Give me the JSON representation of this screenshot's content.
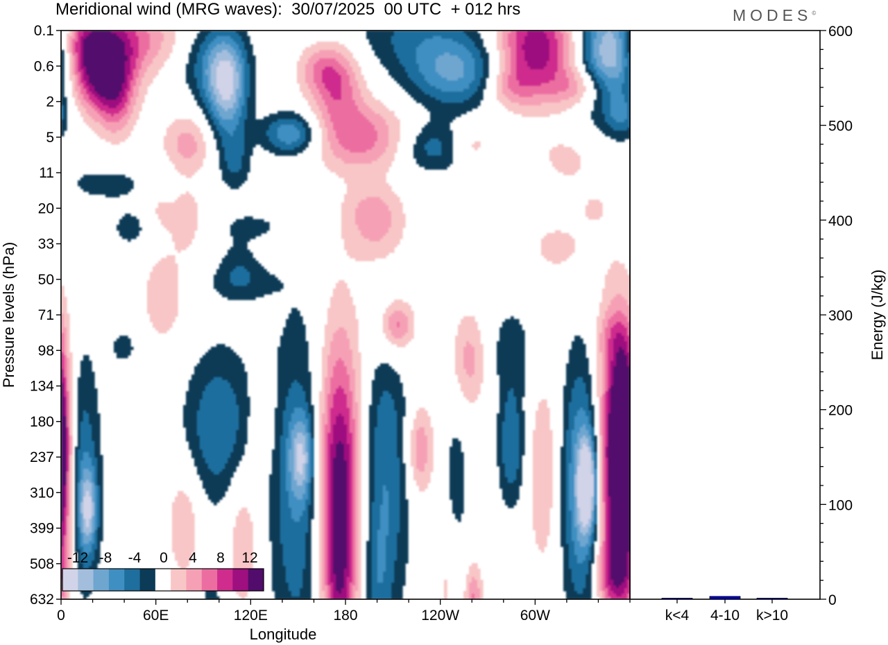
{
  "header": {
    "title": "Meridional wind (MRG waves):  30/07/2025  00 UTC  + 012 hrs",
    "logo": "MODES"
  },
  "colors": {
    "neg": [
      "#0b3b57",
      "#1e6e9e",
      "#3f8fc2",
      "#6ea6d0",
      "#a3bedd",
      "#d1d3e8"
    ],
    "pos": [
      "#f8c6c6",
      "#f6a0b6",
      "#ec6ea1",
      "#cf2c8d",
      "#9e0f7f",
      "#520c6c"
    ],
    "bar": "#0000bb"
  },
  "chart_data": [
    {
      "type": "heatmap",
      "title": "Meridional wind (MRG waves)",
      "xlabel": "Longitude",
      "ylabel": "Pressure levels (hPa)",
      "x_ticks": [
        "0",
        "60E",
        "120E",
        "180",
        "120W",
        "60W"
      ],
      "x_tick_lons": [
        0,
        60,
        120,
        180,
        240,
        300
      ],
      "xlim": [
        0,
        360
      ],
      "y_levels": [
        "0.1",
        "0.6",
        "2",
        "5",
        "11",
        "20",
        "33",
        "50",
        "71",
        "98",
        "134",
        "180",
        "237",
        "310",
        "399",
        "508",
        "632"
      ],
      "colorbar": {
        "labels": [
          "-12",
          "-8",
          "-4",
          "0",
          "4",
          "8",
          "12"
        ],
        "levels": [
          -12,
          -10,
          -8,
          -6,
          -4,
          -2,
          2,
          4,
          6,
          8,
          10,
          12
        ]
      },
      "features": [
        {
          "lon": 25,
          "lev": 1.2,
          "w": 14,
          "h": 0.8,
          "v": 13
        },
        {
          "lon": 40,
          "lev": 0.2,
          "w": 24,
          "h": 0.7,
          "v": 7
        },
        {
          "lon": 12,
          "lev": 0.2,
          "w": 12,
          "h": 0.6,
          "v": 5
        },
        {
          "lon": 35,
          "lev": 2.0,
          "w": 8,
          "h": 0.8,
          "v": 5
        },
        {
          "lon": 80,
          "lev": 3.2,
          "w": 11,
          "h": 0.6,
          "v": 5
        },
        {
          "lon": 62,
          "lev": 5.0,
          "w": 7,
          "h": 0.5,
          "v": 2.5
        },
        {
          "lon": 105,
          "lev": 1.6,
          "w": 9,
          "h": 1.0,
          "v": -11
        },
        {
          "lon": 95,
          "lev": 0.9,
          "w": 14,
          "h": 0.8,
          "v": -5
        },
        {
          "lon": 110,
          "lev": 3.7,
          "w": 7,
          "h": 0.6,
          "v": -4
        },
        {
          "lon": 145,
          "lev": 2.9,
          "w": 12,
          "h": 0.4,
          "v": -8
        },
        {
          "lon": 175,
          "lev": 1.5,
          "w": 11,
          "h": 0.8,
          "v": 7
        },
        {
          "lon": 162,
          "lev": 1.1,
          "w": 10,
          "h": 0.5,
          "v": 4
        },
        {
          "lon": 190,
          "lev": 3.0,
          "w": 20,
          "h": 0.7,
          "v": 7
        },
        {
          "lon": 197,
          "lev": 5.0,
          "w": 13,
          "h": 0.5,
          "v": 3
        },
        {
          "lon": 250,
          "lev": 1.2,
          "w": 22,
          "h": 0.7,
          "v": -8
        },
        {
          "lon": 225,
          "lev": 0.1,
          "w": 30,
          "h": 0.7,
          "v": -4
        },
        {
          "lon": 235,
          "lev": 3.3,
          "w": 14,
          "h": 0.5,
          "v": -5
        },
        {
          "lon": 260,
          "lev": 3.2,
          "w": 9,
          "h": 0.4,
          "v": 3
        },
        {
          "lon": 300,
          "lev": 0.5,
          "w": 18,
          "h": 1.0,
          "v": 12
        },
        {
          "lon": 283,
          "lev": 1.6,
          "w": 11,
          "h": 0.4,
          "v": 4
        },
        {
          "lon": 330,
          "lev": 1.6,
          "w": 14,
          "h": 0.4,
          "v": 5
        },
        {
          "lon": 348,
          "lev": 0.6,
          "w": 14,
          "h": 1.2,
          "v": -13
        },
        {
          "lon": 318,
          "lev": 3.7,
          "w": 14,
          "h": 0.5,
          "v": 3
        },
        {
          "lon": 355,
          "lev": 2.4,
          "w": 6,
          "h": 0.4,
          "v": -4
        },
        {
          "lon": 30,
          "lev": 4.3,
          "w": 28,
          "h": 0.5,
          "v": -2.5
        },
        {
          "lon": 45,
          "lev": 5.6,
          "w": 10,
          "h": 0.4,
          "v": -3
        },
        {
          "lon": 80,
          "lev": 5.2,
          "w": 7,
          "h": 0.7,
          "v": 3
        },
        {
          "lon": 200,
          "lev": 5.7,
          "w": 13,
          "h": 0.7,
          "v": 4
        },
        {
          "lon": 315,
          "lev": 6.1,
          "w": 13,
          "h": 0.5,
          "v": 3
        },
        {
          "lon": 342,
          "lev": 5.0,
          "w": 11,
          "h": 0.4,
          "v": 3
        },
        {
          "lon": 300,
          "lev": 4.2,
          "w": 9,
          "h": 0.4,
          "v": -2.5
        },
        {
          "lon": 350,
          "lev": 5.2,
          "w": 6,
          "h": 0.5,
          "v": -2.5
        },
        {
          "lon": 120,
          "lev": 5.5,
          "w": 14,
          "h": 0.3,
          "v": -2.5
        },
        {
          "lon": 112,
          "lev": 6.5,
          "w": 9,
          "h": 0.5,
          "v": -2.5
        },
        {
          "lon": 115,
          "lev": 7.1,
          "w": 16,
          "h": 0.4,
          "v": -3
        },
        {
          "lon": 65,
          "lev": 7.5,
          "w": 12,
          "h": 1.2,
          "v": 3
        },
        {
          "lon": 40,
          "lev": 8.9,
          "w": 7,
          "h": 0.4,
          "v": -3
        },
        {
          "lon": 210,
          "lev": 8.3,
          "w": 12,
          "h": 0.9,
          "v": 3
        },
        {
          "lon": 213,
          "lev": 8.3,
          "w": 6,
          "h": 0.4,
          "v": 5
        },
        {
          "lon": 258,
          "lev": 9.3,
          "w": 8,
          "h": 1.0,
          "v": 5
        },
        {
          "lon": 285,
          "lev": 9.0,
          "w": 11,
          "h": 1.0,
          "v": -3
        },
        {
          "lon": 350,
          "lev": 8.6,
          "w": 8,
          "h": 0.5,
          "v": 2.5
        },
        {
          "lon": 11,
          "lev": 12.5,
          "w": 9,
          "h": 2.5,
          "v": -7
        },
        {
          "lon": 17,
          "lev": 13.5,
          "w": 4,
          "h": 0.8,
          "v": -9
        },
        {
          "lon": 0,
          "lev": 12.5,
          "w": 7,
          "h": 2.5,
          "v": 9
        },
        {
          "lon": 100,
          "lev": 11.2,
          "w": 16,
          "h": 1.6,
          "v": -6
        },
        {
          "lon": 78,
          "lev": 13.8,
          "w": 8,
          "h": 1.2,
          "v": 4
        },
        {
          "lon": 115,
          "lev": 14.2,
          "w": 8,
          "h": 1.6,
          "v": 4
        },
        {
          "lon": 128,
          "lev": 11.0,
          "w": 6,
          "h": 1.0,
          "v": 3
        },
        {
          "lon": 150,
          "lev": 13.0,
          "w": 13,
          "h": 3.5,
          "v": -6
        },
        {
          "lon": 152,
          "lev": 12.0,
          "w": 5,
          "h": 0.8,
          "v": -8
        },
        {
          "lon": 176,
          "lev": 12.8,
          "w": 10,
          "h": 3.0,
          "v": 13
        },
        {
          "lon": 176,
          "lev": 16.0,
          "w": 6,
          "h": 2.5,
          "v": 5
        },
        {
          "lon": 205,
          "lev": 12.5,
          "w": 11,
          "h": 3.0,
          "v": -6
        },
        {
          "lon": 200,
          "lev": 15.5,
          "w": 6,
          "h": 1.3,
          "v": -3
        },
        {
          "lon": 227,
          "lev": 11.8,
          "w": 6,
          "h": 0.9,
          "v": 6
        },
        {
          "lon": 250,
          "lev": 13.0,
          "w": 6,
          "h": 2.2,
          "v": -3
        },
        {
          "lon": 245,
          "lev": 15.5,
          "w": 6,
          "h": 1.3,
          "v": 3
        },
        {
          "lon": 261,
          "lev": 16.3,
          "w": 4,
          "h": 0.9,
          "v": 7
        },
        {
          "lon": 285,
          "lev": 11.7,
          "w": 6,
          "h": 1.2,
          "v": -6
        },
        {
          "lon": 305,
          "lev": 12.4,
          "w": 7,
          "h": 2.0,
          "v": 4
        },
        {
          "lon": 330,
          "lev": 12.8,
          "w": 9,
          "h": 2.6,
          "v": -9
        },
        {
          "lon": 333,
          "lev": 12.8,
          "w": 4,
          "h": 0.9,
          "v": -13
        },
        {
          "lon": 350,
          "lev": 12.3,
          "w": 9,
          "h": 3.0,
          "v": 12
        },
        {
          "lon": 356,
          "lev": 11.5,
          "w": 5,
          "h": 1.5,
          "v": 13
        },
        {
          "lon": 95,
          "lev": 16.2,
          "w": 6,
          "h": 1.0,
          "v": -3
        },
        {
          "lon": 350,
          "lev": 15.3,
          "w": 8,
          "h": 0.6,
          "v": 5
        }
      ]
    },
    {
      "type": "bar",
      "ylabel": "Energy (J/kg)",
      "categories": [
        "k<4",
        "4-10",
        "k>10"
      ],
      "values": [
        0.5,
        3,
        0.5
      ],
      "ylim": [
        0,
        600
      ],
      "y_ticks": [
        "0",
        "100",
        "200",
        "300",
        "400",
        "500",
        "600"
      ]
    }
  ]
}
